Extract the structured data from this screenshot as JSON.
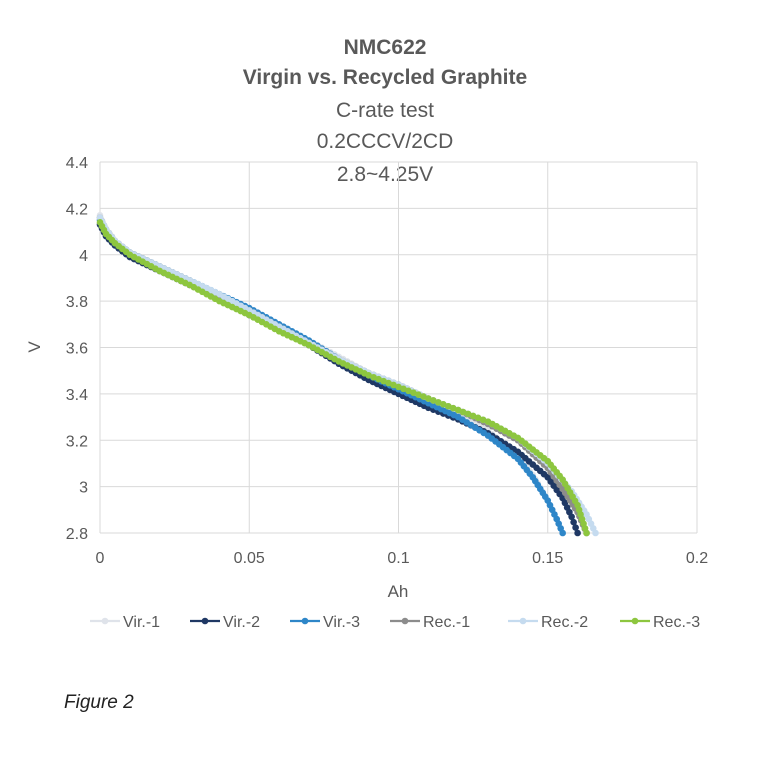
{
  "caption": "Figure 2",
  "chart_data": {
    "type": "scatter",
    "title_lines": [
      "NMC622",
      "Virgin vs. Recycled Graphite",
      "C-rate test",
      "0.2CCCV/2CD",
      "2.8~4.25V"
    ],
    "xlabel": "Ah",
    "ylabel": "V",
    "xlim": [
      0,
      0.2
    ],
    "ylim": [
      2.8,
      4.4
    ],
    "x_ticks": [
      "0",
      "0.05",
      "0.1",
      "0.15",
      "0.2"
    ],
    "y_ticks": [
      "2.8",
      "3",
      "3.2",
      "3.4",
      "3.6",
      "3.8",
      "4",
      "4.2",
      "4.4"
    ],
    "grid": true,
    "legend_position": "bottom",
    "series": [
      {
        "name": "Vir.-1",
        "color": "#dfe3ea",
        "points": [
          [
            0.0,
            4.17
          ],
          [
            0.002,
            4.1
          ],
          [
            0.005,
            4.05
          ],
          [
            0.01,
            4.0
          ],
          [
            0.02,
            3.94
          ],
          [
            0.03,
            3.88
          ],
          [
            0.04,
            3.82
          ],
          [
            0.05,
            3.76
          ],
          [
            0.06,
            3.69
          ],
          [
            0.07,
            3.63
          ],
          [
            0.08,
            3.56
          ],
          [
            0.09,
            3.49
          ],
          [
            0.1,
            3.43
          ],
          [
            0.11,
            3.37
          ],
          [
            0.12,
            3.31
          ],
          [
            0.13,
            3.24
          ],
          [
            0.14,
            3.13
          ],
          [
            0.145,
            3.05
          ],
          [
            0.15,
            2.94
          ],
          [
            0.153,
            2.86
          ],
          [
            0.155,
            2.8
          ]
        ]
      },
      {
        "name": "Vir.-2",
        "color": "#1f3864",
        "points": [
          [
            0.0,
            4.13
          ],
          [
            0.002,
            4.08
          ],
          [
            0.005,
            4.04
          ],
          [
            0.01,
            3.99
          ],
          [
            0.02,
            3.93
          ],
          [
            0.03,
            3.87
          ],
          [
            0.04,
            3.81
          ],
          [
            0.05,
            3.74
          ],
          [
            0.06,
            3.68
          ],
          [
            0.07,
            3.61
          ],
          [
            0.08,
            3.53
          ],
          [
            0.09,
            3.46
          ],
          [
            0.1,
            3.4
          ],
          [
            0.11,
            3.34
          ],
          [
            0.12,
            3.29
          ],
          [
            0.13,
            3.23
          ],
          [
            0.14,
            3.15
          ],
          [
            0.15,
            3.04
          ],
          [
            0.155,
            2.95
          ],
          [
            0.158,
            2.87
          ],
          [
            0.16,
            2.8
          ]
        ]
      },
      {
        "name": "Vir.-3",
        "color": "#2e86c8",
        "points": [
          [
            0.0,
            4.15
          ],
          [
            0.002,
            4.1
          ],
          [
            0.005,
            4.05
          ],
          [
            0.01,
            4.01
          ],
          [
            0.02,
            3.95
          ],
          [
            0.03,
            3.89
          ],
          [
            0.04,
            3.83
          ],
          [
            0.05,
            3.77
          ],
          [
            0.06,
            3.7
          ],
          [
            0.07,
            3.63
          ],
          [
            0.08,
            3.55
          ],
          [
            0.09,
            3.48
          ],
          [
            0.1,
            3.42
          ],
          [
            0.11,
            3.36
          ],
          [
            0.12,
            3.3
          ],
          [
            0.13,
            3.22
          ],
          [
            0.14,
            3.12
          ],
          [
            0.145,
            3.04
          ],
          [
            0.15,
            2.94
          ],
          [
            0.153,
            2.86
          ],
          [
            0.155,
            2.8
          ]
        ]
      },
      {
        "name": "Rec.-1",
        "color": "#8c8c8c",
        "points": [
          [
            0.0,
            4.16
          ],
          [
            0.002,
            4.11
          ],
          [
            0.005,
            4.06
          ],
          [
            0.01,
            4.01
          ],
          [
            0.02,
            3.95
          ],
          [
            0.03,
            3.89
          ],
          [
            0.04,
            3.82
          ],
          [
            0.05,
            3.76
          ],
          [
            0.06,
            3.69
          ],
          [
            0.07,
            3.62
          ],
          [
            0.08,
            3.55
          ],
          [
            0.09,
            3.49
          ],
          [
            0.1,
            3.44
          ],
          [
            0.11,
            3.38
          ],
          [
            0.12,
            3.33
          ],
          [
            0.13,
            3.27
          ],
          [
            0.14,
            3.2
          ],
          [
            0.15,
            3.08
          ],
          [
            0.155,
            2.99
          ],
          [
            0.16,
            2.89
          ],
          [
            0.163,
            2.8
          ]
        ]
      },
      {
        "name": "Rec.-2",
        "color": "#c5dbef",
        "points": [
          [
            0.0,
            4.16
          ],
          [
            0.002,
            4.11
          ],
          [
            0.005,
            4.06
          ],
          [
            0.01,
            4.01
          ],
          [
            0.02,
            3.95
          ],
          [
            0.03,
            3.89
          ],
          [
            0.04,
            3.83
          ],
          [
            0.05,
            3.76
          ],
          [
            0.06,
            3.69
          ],
          [
            0.07,
            3.62
          ],
          [
            0.08,
            3.55
          ],
          [
            0.09,
            3.49
          ],
          [
            0.1,
            3.44
          ],
          [
            0.11,
            3.38
          ],
          [
            0.12,
            3.33
          ],
          [
            0.13,
            3.28
          ],
          [
            0.14,
            3.21
          ],
          [
            0.15,
            3.1
          ],
          [
            0.158,
            2.98
          ],
          [
            0.163,
            2.88
          ],
          [
            0.166,
            2.8
          ]
        ]
      },
      {
        "name": "Rec.-3",
        "color": "#8dc63f",
        "points": [
          [
            0.0,
            4.14
          ],
          [
            0.002,
            4.09
          ],
          [
            0.005,
            4.05
          ],
          [
            0.01,
            4.0
          ],
          [
            0.02,
            3.93
          ],
          [
            0.03,
            3.87
          ],
          [
            0.04,
            3.8
          ],
          [
            0.05,
            3.74
          ],
          [
            0.06,
            3.67
          ],
          [
            0.07,
            3.61
          ],
          [
            0.08,
            3.54
          ],
          [
            0.09,
            3.48
          ],
          [
            0.1,
            3.43
          ],
          [
            0.11,
            3.38
          ],
          [
            0.12,
            3.33
          ],
          [
            0.13,
            3.28
          ],
          [
            0.14,
            3.21
          ],
          [
            0.15,
            3.11
          ],
          [
            0.155,
            3.03
          ],
          [
            0.16,
            2.92
          ],
          [
            0.163,
            2.8
          ]
        ]
      }
    ]
  }
}
